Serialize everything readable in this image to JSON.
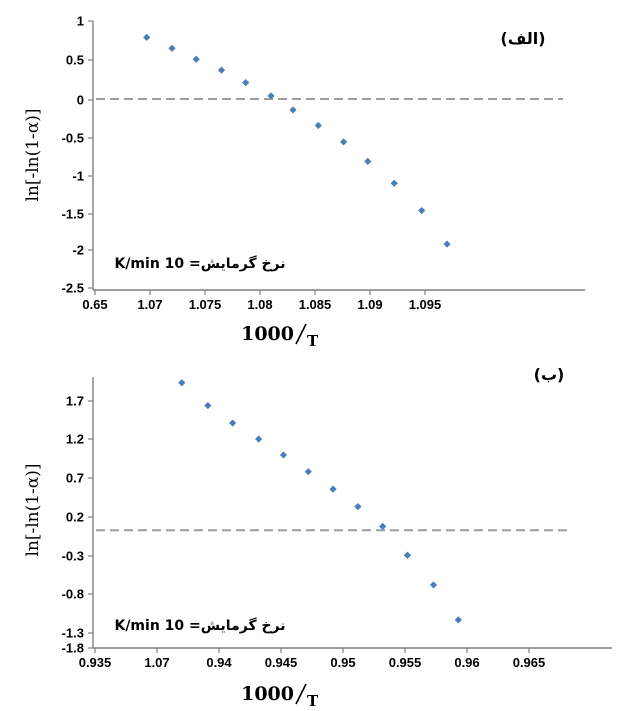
{
  "chart_data": [
    {
      "type": "scatter",
      "panel_label": "(الف)",
      "ylabel": "ln[-ln(1-α)]",
      "xlabel_num": "1000",
      "xlabel_den": "T",
      "annotation": "نرخ گرمایش= 10 K/min",
      "x_ticks": [
        "0.65",
        "1.07",
        "1.075",
        "1.08",
        "1.085",
        "1.09",
        "1.095"
      ],
      "y_ticks": [
        "1",
        "0.5",
        "0",
        "-0.5",
        "-1",
        "-1.5",
        "-2",
        "-2.5"
      ],
      "ylim": [
        -2.5,
        1.0
      ],
      "ref_line_y": 0,
      "series": [
        {
          "x": [
            1.0697,
            1.072,
            1.0742,
            1.0765,
            1.0787,
            1.081,
            1.083,
            1.0853,
            1.0876,
            1.0898,
            1.0922,
            1.0947,
            1.097
          ],
          "y": [
            0.79,
            0.65,
            0.51,
            0.37,
            0.21,
            0.04,
            -0.14,
            -0.34,
            -0.55,
            -0.8,
            -1.08,
            -1.43,
            -1.86
          ]
        }
      ]
    },
    {
      "type": "scatter",
      "panel_label": "(ب)",
      "ylabel": "ln[-ln(1-α)]",
      "xlabel_num": "1000",
      "xlabel_den": "T",
      "annotation": "نرخ گرمایش= 10 K/min",
      "x_ticks": [
        "0.935",
        "1.07",
        "0.94",
        "0.945",
        "0.95",
        "0.955",
        "0.96",
        "0.965"
      ],
      "y_ticks": [
        "1.7",
        "1.2",
        "0.7",
        "0.2",
        "-0.3",
        "-0.8",
        "-1.3",
        "-1.8"
      ],
      "ylim": [
        -1.8,
        1.95
      ],
      "ref_line_y": 0,
      "series": [
        {
          "x": [
            0.937,
            0.9391,
            0.9411,
            0.9432,
            0.9452,
            0.9472,
            0.9492,
            0.9512,
            0.9532,
            0.9552,
            0.9573,
            0.9593
          ],
          "y": [
            1.94,
            1.64,
            1.41,
            1.2,
            0.99,
            0.77,
            0.54,
            0.31,
            0.05,
            -0.33,
            -0.72,
            -1.18
          ]
        }
      ]
    }
  ]
}
